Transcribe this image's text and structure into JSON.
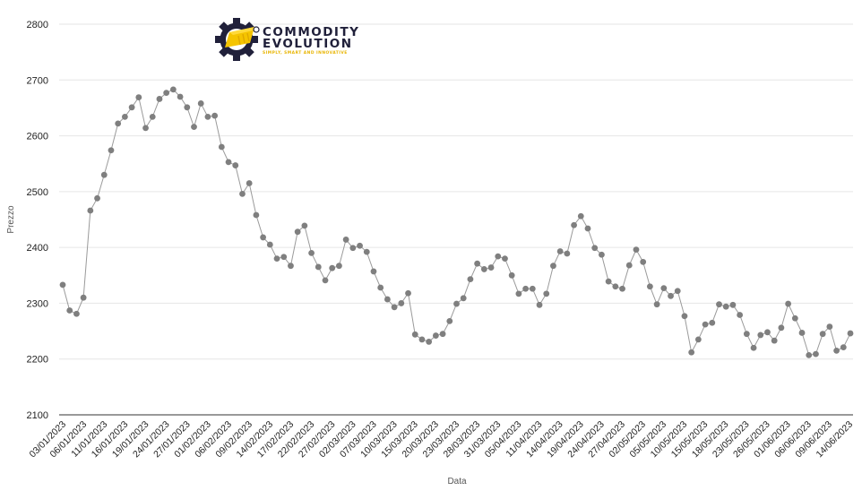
{
  "logo": {
    "line1": "COMMODITY",
    "line2": "EVOLUTION",
    "tagline": "SIMPLY, SMART AND INNOVATIVE",
    "colors": {
      "dark": "#20203a",
      "accent": "#f5c400"
    }
  },
  "chart_data": {
    "type": "line",
    "xlabel": "Data",
    "ylabel": "Prezzo",
    "ylim": [
      2100,
      2800
    ],
    "yticks": [
      2100,
      2200,
      2300,
      2400,
      2500,
      2600,
      2700,
      2800
    ],
    "grid": true,
    "marker_color": "#7f7f7f",
    "line_color": "#9a9a9a",
    "x_tick_labels": [
      "03/01/2023",
      "06/01/2023",
      "11/01/2023",
      "16/01/2023",
      "19/01/2023",
      "24/01/2023",
      "27/01/2023",
      "01/02/2023",
      "06/02/2023",
      "09/02/2023",
      "14/02/2023",
      "17/02/2023",
      "22/02/2023",
      "27/02/2023",
      "02/03/2023",
      "07/03/2023",
      "10/03/2023",
      "15/03/2023",
      "20/03/2023",
      "23/03/2023",
      "28/03/2023",
      "31/03/2023",
      "05/04/2023",
      "11/04/2023",
      "14/04/2023",
      "19/04/2023",
      "24/04/2023",
      "27/04/2023",
      "02/05/2023",
      "05/05/2023",
      "10/05/2023",
      "15/05/2023",
      "18/05/2023",
      "23/05/2023",
      "26/05/2023",
      "01/06/2023",
      "06/06/2023",
      "09/06/2023",
      "14/06/2023"
    ],
    "values": [
      2333,
      2287,
      2281,
      2310,
      2466,
      2488,
      2530,
      2574,
      2622,
      2634,
      2651,
      2669,
      2614,
      2634,
      2666,
      2677,
      2683,
      2670,
      2651,
      2616,
      2658,
      2634,
      2636,
      2580,
      2553,
      2547,
      2496,
      2515,
      2458,
      2418,
      2405,
      2380,
      2383,
      2367,
      2428,
      2439,
      2390,
      2365,
      2341,
      2363,
      2367,
      2414,
      2399,
      2403,
      2392,
      2357,
      2328,
      2307,
      2293,
      2300,
      2318,
      2244,
      2235,
      2231,
      2242,
      2245,
      2268,
      2299,
      2309,
      2343,
      2371,
      2361,
      2364,
      2384,
      2380,
      2350,
      2317,
      2326,
      2326,
      2297,
      2317,
      2367,
      2393,
      2389,
      2440,
      2456,
      2434,
      2399,
      2387,
      2339,
      2330,
      2326,
      2368,
      2396,
      2374,
      2330,
      2298,
      2327,
      2313,
      2322,
      2277,
      2212,
      2235,
      2262,
      2265,
      2298,
      2294,
      2297,
      2279,
      2245,
      2220,
      2243,
      2248,
      2233,
      2256,
      2299,
      2273,
      2247,
      2207,
      2209,
      2245,
      2258,
      2215,
      2221,
      2246
    ]
  }
}
